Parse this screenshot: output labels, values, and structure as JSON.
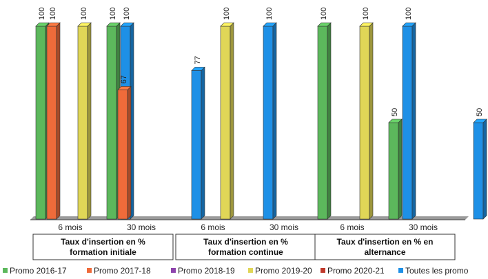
{
  "chart_data": {
    "type": "bar",
    "ylim": [
      0,
      100
    ],
    "groups": [
      {
        "label_lines": [
          "Taux d'insertion en %",
          "formation initiale"
        ],
        "subgroups": [
          {
            "label": "6 mois",
            "bars": [
              {
                "series": 0,
                "value": 100,
                "label": "100"
              },
              {
                "series": 1,
                "value": 100,
                "label": "100"
              },
              {
                "series": 3,
                "value": 100,
                "label": "100"
              },
              {
                "series": 5,
                "value": 100,
                "label": "100"
              }
            ]
          },
          {
            "label": "30 mois",
            "bars": [
              {
                "series": 0,
                "value": 100,
                "label": "100"
              },
              {
                "series": 1,
                "value": 67,
                "label": "67"
              },
              {
                "series": 5,
                "value": 77,
                "label": "77"
              }
            ]
          }
        ]
      },
      {
        "label_lines": [
          "Taux d'insertion en %",
          "formation continue"
        ],
        "subgroups": [
          {
            "label": "6 mois",
            "bars": [
              {
                "series": 3,
                "value": 100,
                "label": "100"
              },
              {
                "series": 5,
                "value": 100,
                "label": "100"
              }
            ]
          },
          {
            "label": "30 mois",
            "bars": []
          }
        ]
      },
      {
        "label_lines": [
          "Taux d'insertion en %  en",
          "alternance"
        ],
        "subgroups": [
          {
            "label": "6 mois",
            "bars": [
              {
                "series": 0,
                "value": 100,
                "label": "100"
              },
              {
                "series": 3,
                "value": 100,
                "label": "100"
              },
              {
                "series": 5,
                "value": 100,
                "label": "100"
              }
            ]
          },
          {
            "label": "30 mois",
            "bars": [
              {
                "series": 0,
                "value": 50,
                "label": "50"
              },
              {
                "series": 5,
                "value": 50,
                "label": "50"
              }
            ]
          }
        ]
      }
    ],
    "series": [
      {
        "name": "Promo 2016-17",
        "color": "#5cb85c"
      },
      {
        "name": "Promo 2017-18",
        "color": "#ef6b3a"
      },
      {
        "name": "Promo 2018-19",
        "color": "#8e44ad"
      },
      {
        "name": "Promo 2019-20",
        "color": "#e0d657"
      },
      {
        "name": "Promo 2020-21",
        "color": "#c0392b"
      },
      {
        "name": "Toutes les promo",
        "color": "#1e90e6"
      }
    ],
    "legend_position": "bottom",
    "grid": false
  }
}
